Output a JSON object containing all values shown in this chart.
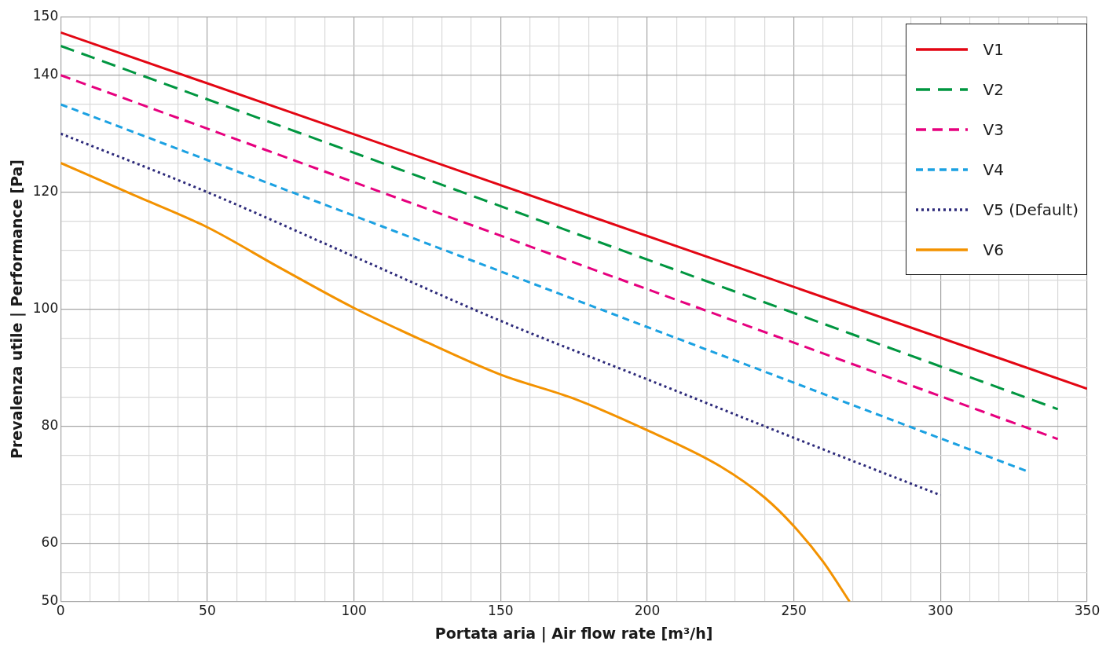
{
  "chart_data": {
    "type": "line",
    "xlabel": "Portata aria | Air flow rate [m³/h]",
    "ylabel": "Prevalenza utile | Performance [Pa]",
    "xlim": [
      0,
      350
    ],
    "ylim": [
      50,
      150
    ],
    "xticks": [
      0,
      {
        "value": 10,
        "label": null
      },
      {
        "value": 20,
        "label": null
      },
      {
        "value": 30,
        "label": null
      },
      {
        "value": 40,
        "label": null
      },
      50,
      {
        "value": 60,
        "label": null
      },
      {
        "value": 70,
        "label": null
      },
      {
        "value": 80,
        "label": null
      },
      {
        "value": 90,
        "label": null
      },
      100,
      {
        "value": 110,
        "label": null
      },
      {
        "value": 120,
        "label": null
      },
      {
        "value": 130,
        "label": null
      },
      {
        "value": 140,
        "label": null
      },
      150,
      {
        "value": 160,
        "label": null
      },
      {
        "value": 170,
        "label": null
      },
      {
        "value": 180,
        "label": null
      },
      {
        "value": 190,
        "label": null
      },
      200,
      {
        "value": 210,
        "label": null
      },
      {
        "value": 220,
        "label": null
      },
      {
        "value": 230,
        "label": null
      },
      {
        "value": 240,
        "label": null
      },
      250,
      {
        "value": 260,
        "label": null
      },
      {
        "value": 270,
        "label": null
      },
      {
        "value": 280,
        "label": null
      },
      {
        "value": 290,
        "label": null
      },
      300,
      {
        "value": 310,
        "label": null
      },
      {
        "value": 320,
        "label": null
      },
      {
        "value": 330,
        "label": null
      },
      {
        "value": 340,
        "label": null
      },
      350
    ],
    "yticks": [
      50,
      {
        "value": 55,
        "label": null
      },
      60,
      {
        "value": 65,
        "label": null
      },
      {
        "value": 70,
        "label": null
      },
      {
        "value": 75,
        "label": null
      },
      80,
      {
        "value": 85,
        "label": null
      },
      {
        "value": 90,
        "label": null
      },
      {
        "value": 95,
        "label": null
      },
      100,
      {
        "value": 105,
        "label": null
      },
      {
        "value": 110,
        "label": null
      },
      {
        "value": 115,
        "label": null
      },
      120,
      {
        "value": 125,
        "label": null
      },
      {
        "value": 130,
        "label": null
      },
      {
        "value": 135,
        "label": null
      },
      140,
      {
        "value": 145,
        "label": null
      },
      150
    ],
    "grid": true,
    "legend": "top right",
    "marker": "none",
    "series": [
      {
        "name": "V1",
        "color": "#e30613",
        "line_style": "solid",
        "x": [
          0,
          350
        ],
        "values": [
          147.3,
          86.4
        ]
      },
      {
        "name": "V2",
        "color": "#009640",
        "line_style": "dashed",
        "x": [
          0,
          340
        ],
        "values": [
          145,
          82.9
        ]
      },
      {
        "name": "V3",
        "color": "#e6007e",
        "line_style": "dashed",
        "x": [
          0,
          340
        ],
        "values": [
          140,
          77.8
        ]
      },
      {
        "name": "V4",
        "color": "#1ba1e2",
        "line_style": "dashed",
        "x": [
          0,
          330
        ],
        "values": [
          135,
          72.2
        ]
      },
      {
        "name": "V5 (Default)",
        "color": "#2d2a7a",
        "line_style": "dotted",
        "x": [
          0,
          50,
          100,
          150,
          200,
          250,
          300
        ],
        "values": [
          130,
          120,
          109,
          98,
          88,
          78,
          68.2
        ]
      },
      {
        "name": "V6",
        "color": "#f39200",
        "line_style": "solid",
        "x": [
          0,
          25,
          50,
          75,
          100,
          125,
          150,
          175,
          200,
          225,
          240,
          250,
          260,
          269
        ],
        "values": [
          125,
          119.5,
          114,
          107,
          100.2,
          94.3,
          88.8,
          84.7,
          79.3,
          73.1,
          67.8,
          62.9,
          56.8,
          50
        ]
      }
    ]
  }
}
